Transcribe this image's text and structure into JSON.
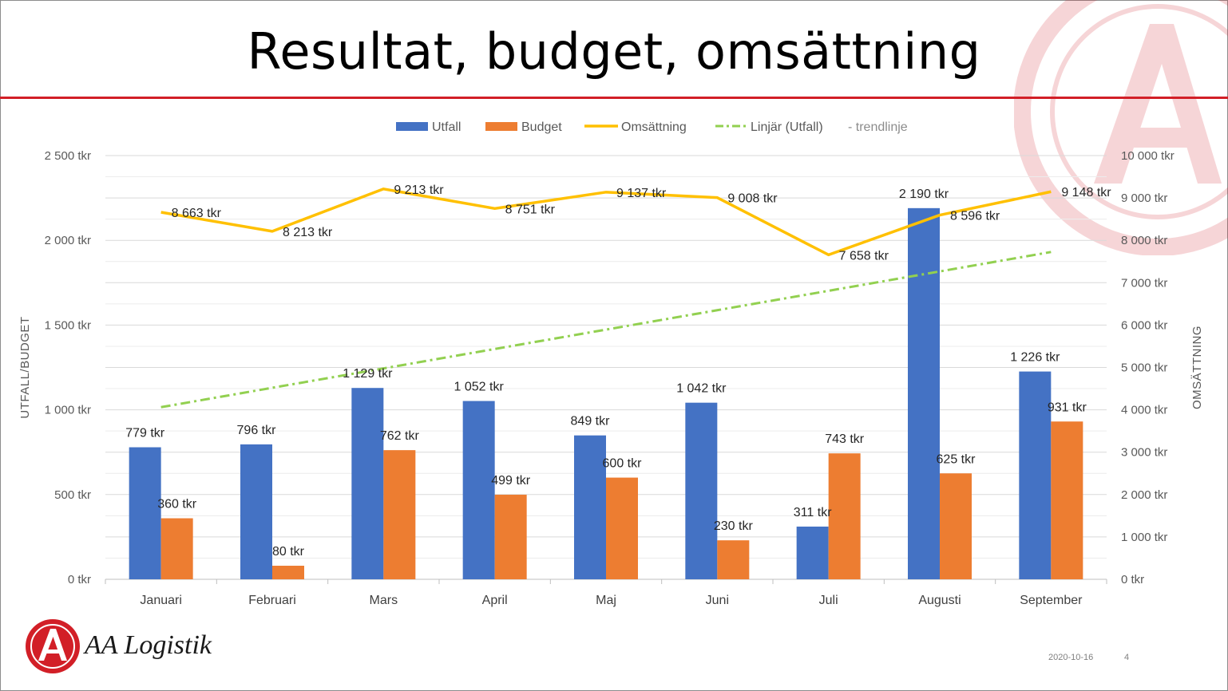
{
  "slide": {
    "title": "Resultat, budget, omsättning",
    "brand": "AA Logistik",
    "date": "2020-10-16",
    "page_number": "4"
  },
  "colors": {
    "accent_red": "#d21f27",
    "utfall": "#4472c4",
    "budget": "#ed7d31",
    "omsattning": "#ffc000",
    "trend": "#92d050"
  },
  "chart_data": {
    "type": "bar",
    "categories": [
      "Januari",
      "Februari",
      "Mars",
      "April",
      "Maj",
      "Juni",
      "Juli",
      "Augusti",
      "September"
    ],
    "series": [
      {
        "name": "Utfall",
        "type": "bar",
        "axis": "left",
        "values": [
          779,
          796,
          1129,
          1052,
          849,
          1042,
          311,
          2190,
          1226
        ],
        "labels": [
          "779 tkr",
          "796 tkr",
          "1 129 tkr",
          "1 052 tkr",
          "849 tkr",
          "1 042 tkr",
          "311 tkr",
          "2 190 tkr",
          "1 226 tkr"
        ]
      },
      {
        "name": "Budget",
        "type": "bar",
        "axis": "left",
        "values": [
          360,
          80,
          762,
          499,
          600,
          230,
          743,
          625,
          931
        ],
        "labels": [
          "360 tkr",
          "80 tkr",
          "762 tkr",
          "499 tkr",
          "600 tkr",
          "230 tkr",
          "743 tkr",
          "625 tkr",
          "931 tkr"
        ]
      },
      {
        "name": "Omsättning",
        "type": "line",
        "axis": "right",
        "values": [
          8663,
          8213,
          9213,
          8751,
          9137,
          9008,
          7658,
          8596,
          9148
        ],
        "labels": [
          "8 663 tkr",
          "8 213 tkr",
          "9 213 tkr",
          "8 751 tkr",
          "9 137 tkr",
          "9 008 tkr",
          "7 658 tkr",
          "8 596 tkr",
          "9 148 tkr"
        ]
      },
      {
        "name": "Linjär (Utfall)",
        "type": "trendline",
        "axis": "left",
        "values": [
          1015.6,
          1130.0,
          1244.4,
          1358.9,
          1473.3,
          1587.8,
          1702.2,
          1816.6,
          1931.1
        ]
      }
    ],
    "legend": {
      "items": [
        "Utfall",
        "Budget",
        "Omsättning",
        "Linjär (Utfall)"
      ],
      "note": "- trendlinje",
      "position": "top"
    },
    "y_left": {
      "label": "UTFALL/BUDGET",
      "ylim": [
        0,
        2500
      ],
      "ticks": [
        0,
        500,
        1000,
        1500,
        2000,
        2500
      ],
      "tick_labels": [
        "0 tkr",
        "500 tkr",
        "1 000 tkr",
        "1 500 tkr",
        "2 000 tkr",
        "2 500 tkr"
      ]
    },
    "y_right": {
      "label": "OMSÄTTNING",
      "ylim": [
        0,
        10000
      ],
      "ticks": [
        0,
        1000,
        2000,
        3000,
        4000,
        5000,
        6000,
        7000,
        8000,
        9000,
        10000
      ],
      "tick_labels": [
        "0 tkr",
        "1 000 tkr",
        "2 000 tkr",
        "3 000 tkr",
        "4 000 tkr",
        "5 000 tkr",
        "6 000 tkr",
        "7 000 tkr",
        "8 000 tkr",
        "9 000 tkr",
        "10 000 tkr"
      ]
    },
    "grid": true
  }
}
